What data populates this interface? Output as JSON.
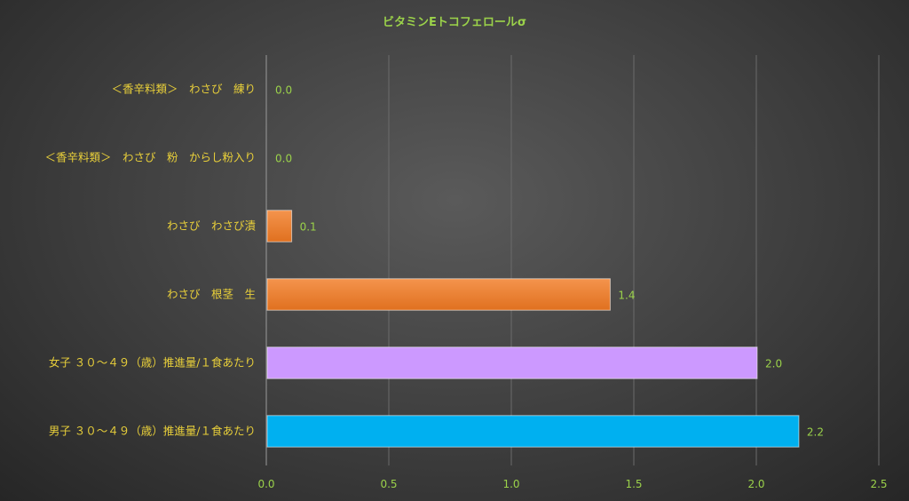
{
  "chart_data": {
    "type": "bar",
    "orientation": "horizontal",
    "title": "ビタミンEトコフェロールσ",
    "categories": [
      "＜香辛料類＞　わさび　練り",
      "＜香辛料類＞　わさび　粉　からし粉入り",
      "わさび　わさび漬",
      "わさび　根茎　生",
      "女子 ３０～４９（歳）推進量/１食あたり",
      "男子 ３０～４９（歳）推進量/１食あたり"
    ],
    "values": [
      0.0,
      0.0,
      0.1,
      1.4,
      2.0,
      2.17
    ],
    "data_labels": [
      "0.0",
      "0.0",
      "0.1",
      "1.4",
      "2.0",
      "2.2"
    ],
    "colors": [
      "#ed7d31",
      "#ed7d31",
      "#ed7d31",
      "#ed7d31",
      "#cc99ff",
      "#00b0f0"
    ],
    "xlim": [
      0,
      2.5
    ],
    "xticks": [
      "0.0",
      "0.5",
      "1.0",
      "1.5",
      "2.0",
      "2.5"
    ],
    "grid": true,
    "legend": "none"
  }
}
